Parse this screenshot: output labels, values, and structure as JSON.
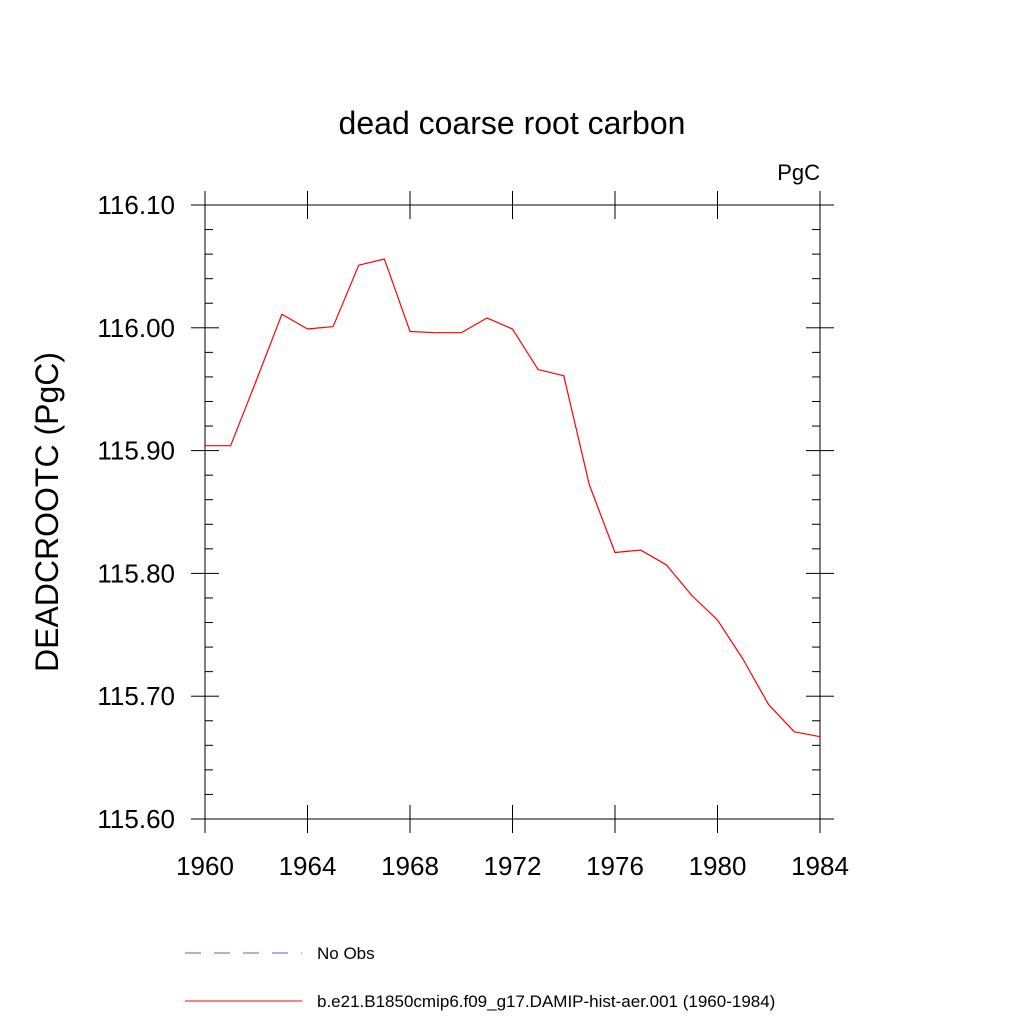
{
  "chart_data": {
    "type": "line",
    "title": "dead coarse root carbon",
    "units_label": "PgC",
    "ylabel": "DEADCROOTC  (PgC)",
    "xlabel": "",
    "xlim": [
      1960,
      1984
    ],
    "ylim": [
      115.6,
      116.1
    ],
    "x_ticks": [
      1960,
      1964,
      1968,
      1972,
      1976,
      1980,
      1984
    ],
    "x_tick_labels": [
      "1960",
      "1964",
      "1968",
      "1972",
      "1976",
      "1980",
      "1984"
    ],
    "y_ticks": [
      115.6,
      115.7,
      115.8,
      115.9,
      116.0,
      116.1
    ],
    "y_tick_labels": [
      "115.60",
      "115.70",
      "115.80",
      "115.90",
      "116.00",
      "116.10"
    ],
    "grid": false,
    "legend_position": "bottom",
    "legend": [
      {
        "label": "No Obs",
        "color": "#6a5acd",
        "style": "dashed"
      },
      {
        "label": "b.e21.B1850cmip6.f09_g17.DAMIP-hist-aer.001 (1960-1984)",
        "color": "#ff0000",
        "style": "solid"
      }
    ],
    "series": [
      {
        "color": "#ff0000",
        "x": [
          1960,
          1961,
          1962,
          1963,
          1964,
          1965,
          1966,
          1967,
          1968,
          1969,
          1970,
          1971,
          1972,
          1973,
          1974,
          1975,
          1976,
          1977,
          1978,
          1979,
          1980,
          1981,
          1982,
          1983,
          1984
        ],
        "values": [
          115.904,
          115.904,
          115.957,
          116.011,
          115.999,
          116.001,
          116.051,
          116.056,
          115.997,
          115.996,
          115.996,
          116.008,
          115.999,
          115.966,
          115.961,
          115.872,
          115.817,
          115.819,
          115.807,
          115.782,
          115.762,
          115.73,
          115.693,
          115.671,
          115.667
        ]
      }
    ]
  }
}
